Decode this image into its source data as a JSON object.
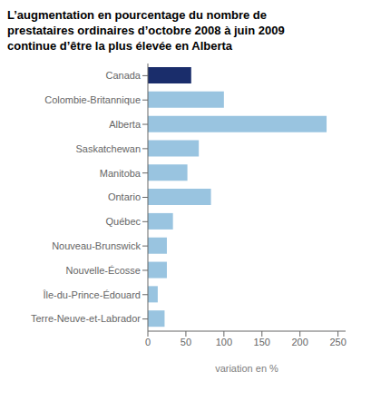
{
  "chart_data": {
    "type": "bar",
    "orientation": "horizontal",
    "title": "L’augmentation en pourcentage du nombre de\nprestataires ordinaires d’octobre 2008 à juin 2009\ncontinue d’être la plus élevée en Alberta",
    "xlabel": "variation en %",
    "categories": [
      "Canada",
      "Colombie-Britannique",
      "Alberta",
      "Saskatchewan",
      "Manitoba",
      "Ontario",
      "Québec",
      "Nouveau-Brunswick",
      "Nouvelle-Écosse",
      "Île-du-Prince-Édouard",
      "Terre-Neuve-et-Labrador"
    ],
    "values": [
      57,
      100,
      235,
      67,
      52,
      83,
      33,
      25,
      25,
      13,
      22
    ],
    "colors": [
      "#1a2d6b",
      "#99c4e0",
      "#99c4e0",
      "#99c4e0",
      "#99c4e0",
      "#99c4e0",
      "#99c4e0",
      "#99c4e0",
      "#99c4e0",
      "#99c4e0",
      "#99c4e0"
    ],
    "xlim": [
      0,
      260
    ],
    "xticks": [
      0,
      50,
      100,
      150,
      200,
      250
    ],
    "grid": false
  }
}
